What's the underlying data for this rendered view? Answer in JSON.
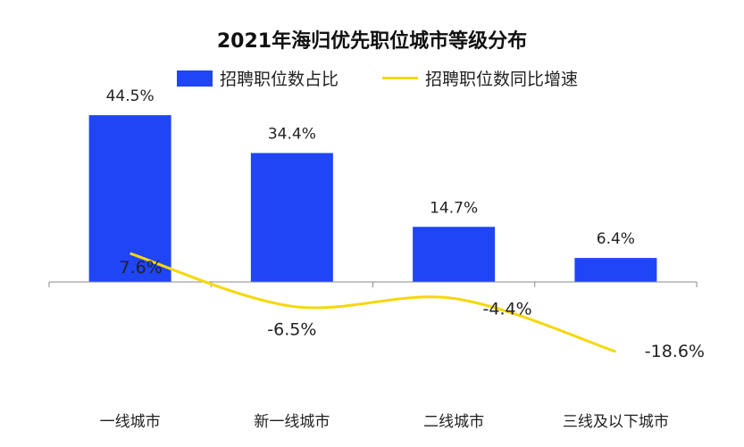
{
  "chart_data": {
    "type": "bar",
    "title": "2021年海归优先职位城市等级分布",
    "categories": [
      "一线城市",
      "新一线城市",
      "二线城市",
      "三线及以下城市"
    ],
    "series": [
      {
        "name": "招聘职位数占比",
        "type": "bar",
        "color": "#1f45f5",
        "values": [
          44.5,
          34.4,
          14.7,
          6.4
        ],
        "labels": [
          "44.5%",
          "34.4%",
          "14.7%",
          "6.4%"
        ]
      },
      {
        "name": "招聘职位数同比增速",
        "type": "line",
        "color": "#f5d80a",
        "values": [
          7.6,
          -6.5,
          -4.4,
          -18.6
        ],
        "labels": [
          "7.6%",
          "-6.5%",
          "-4.4%",
          "-18.6%"
        ]
      }
    ],
    "ylim": [
      -30,
      50
    ],
    "grid": false,
    "legend_position": "top"
  }
}
